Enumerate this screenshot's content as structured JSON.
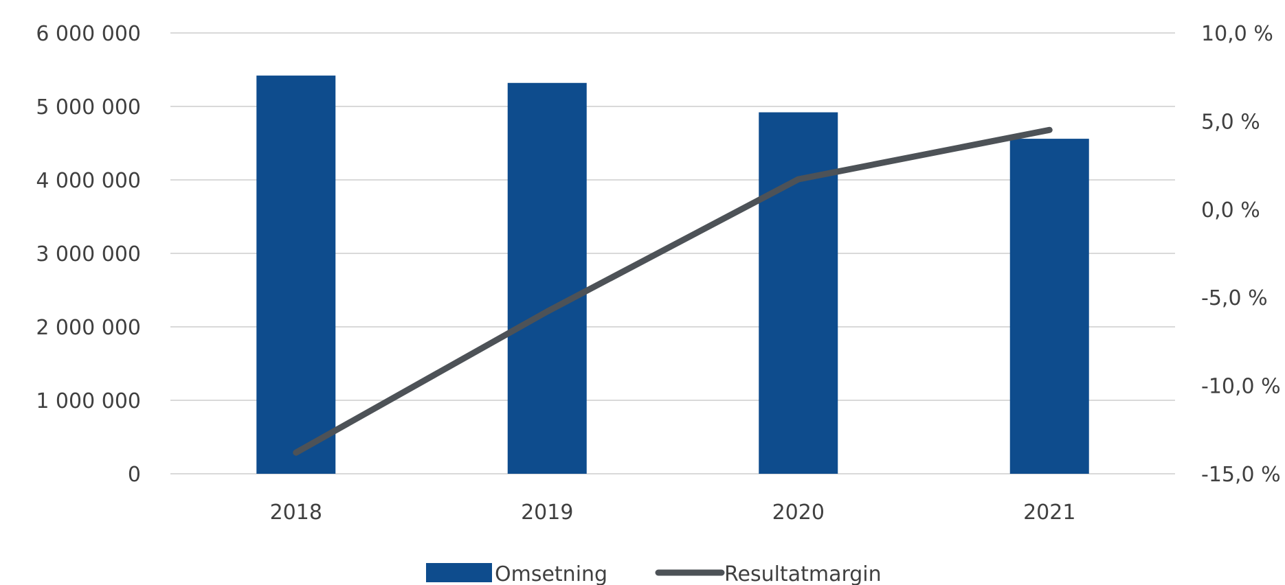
{
  "chart_data": {
    "type": "bar",
    "categories": [
      "2018",
      "2019",
      "2020",
      "2021"
    ],
    "series": [
      {
        "name": "Omsetning",
        "type": "bar",
        "axis": "left",
        "color": "#0e4c8d",
        "values": [
          5420000,
          5320000,
          4920000,
          4560000
        ]
      },
      {
        "name": "Resultatmargin",
        "type": "line",
        "axis": "right",
        "color": "#4d5257",
        "values": [
          -13.8,
          -5.8,
          1.7,
          4.5
        ]
      }
    ],
    "y_left": {
      "min": 0,
      "max": 6000000,
      "ticks": [
        0,
        1000000,
        2000000,
        3000000,
        4000000,
        5000000,
        6000000
      ],
      "tick_labels": [
        "0",
        "1 000 000",
        "2 000 000",
        "3 000 000",
        "4 000 000",
        "5 000 000",
        "6 000 000"
      ]
    },
    "y_right": {
      "min": -15,
      "max": 10,
      "ticks": [
        -15,
        -10,
        -5,
        0,
        5,
        10
      ],
      "tick_labels": [
        "-15,0 %",
        "-10,0 %",
        "-5,0 %",
        "0,0 %",
        "5,0 %",
        "10,0 %"
      ]
    },
    "grid": true,
    "legend_position": "bottom"
  },
  "colors": {
    "grid": "#d9d9d9",
    "text": "#404040"
  }
}
